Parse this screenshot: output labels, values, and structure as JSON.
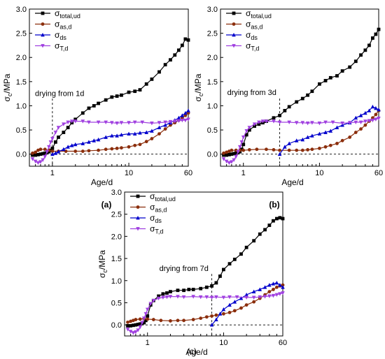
{
  "colors": {
    "sigma_total_ud": "#000000",
    "sigma_as_d": "#8b2e0c",
    "sigma_ds": "#0000cc",
    "sigma_T_d": "#a040e0"
  },
  "legend": [
    {
      "key": "sigma_total_ud",
      "base": "σ",
      "sub": "total,ud",
      "marker": "square"
    },
    {
      "key": "sigma_as_d",
      "base": "σ",
      "sub": "as,d",
      "marker": "circle"
    },
    {
      "key": "sigma_ds",
      "base": "σ",
      "sub": "ds",
      "marker": "triangle-up"
    },
    {
      "key": "sigma_T_d",
      "base": "σ",
      "sub": "T,d",
      "marker": "triangle-down"
    }
  ],
  "chart_data": [
    {
      "type": "line",
      "panel_label": "(a)",
      "annotation": "drying from 1d",
      "drying_start_day": 1,
      "xlabel": "Age/d",
      "ylabel": {
        "base": "σ",
        "sub": "c",
        "rest": "/MPa"
      },
      "xscale": "log",
      "xlim": [
        0.5,
        60
      ],
      "ylim": [
        -0.25,
        3.0
      ],
      "xticks": [
        1,
        10,
        60
      ],
      "yticks": [
        0.0,
        0.5,
        1.0,
        1.5,
        2.0,
        2.5,
        3.0
      ],
      "legend_position": "top-left",
      "series": [
        {
          "key": "sigma_total_ud",
          "name": "σtotal,ud",
          "x": [
            0.55,
            0.6,
            0.65,
            0.7,
            0.75,
            0.8,
            0.85,
            0.9,
            0.95,
            1.0,
            1.1,
            1.2,
            1.4,
            1.6,
            1.8,
            2.0,
            2.5,
            3,
            3.5,
            4,
            5,
            6,
            7,
            8,
            10,
            12,
            14,
            17,
            20,
            25,
            30,
            35,
            40,
            45,
            50,
            55,
            60
          ],
          "y": [
            -0.02,
            -0.02,
            -0.01,
            0.0,
            0.01,
            0.02,
            0.03,
            0.05,
            0.08,
            0.12,
            0.25,
            0.35,
            0.45,
            0.55,
            0.65,
            0.72,
            0.85,
            0.95,
            1.0,
            1.05,
            1.12,
            1.18,
            1.2,
            1.22,
            1.28,
            1.3,
            1.33,
            1.45,
            1.55,
            1.7,
            1.85,
            1.95,
            2.05,
            2.15,
            2.25,
            2.38,
            2.36
          ]
        },
        {
          "key": "sigma_as_d",
          "name": "σas,d",
          "x": [
            0.55,
            0.6,
            0.65,
            0.7,
            0.8,
            0.9,
            1.0,
            1.2,
            1.5,
            2,
            2.5,
            3,
            4,
            5,
            6,
            7,
            8,
            10,
            12,
            14,
            17,
            20,
            25,
            30,
            35,
            40,
            45,
            50,
            55,
            60
          ],
          "y": [
            0.02,
            0.04,
            0.08,
            0.1,
            0.1,
            0.08,
            0.06,
            0.06,
            0.06,
            0.06,
            0.06,
            0.07,
            0.08,
            0.1,
            0.11,
            0.12,
            0.13,
            0.15,
            0.18,
            0.2,
            0.26,
            0.32,
            0.42,
            0.52,
            0.6,
            0.65,
            0.7,
            0.75,
            0.8,
            0.85
          ]
        },
        {
          "key": "sigma_ds",
          "name": "σds",
          "x": [
            1.0,
            1.1,
            1.2,
            1.4,
            1.6,
            1.8,
            2.0,
            2.5,
            3,
            3.5,
            4,
            5,
            6,
            7,
            8,
            10,
            12,
            14,
            17,
            20,
            25,
            30,
            35,
            40,
            45,
            50,
            55,
            60
          ],
          "y": [
            0.0,
            0.02,
            0.05,
            0.1,
            0.15,
            0.18,
            0.2,
            0.22,
            0.25,
            0.28,
            0.3,
            0.35,
            0.38,
            0.38,
            0.4,
            0.42,
            0.42,
            0.44,
            0.45,
            0.48,
            0.55,
            0.6,
            0.65,
            0.7,
            0.75,
            0.8,
            0.85,
            0.9
          ]
        },
        {
          "key": "sigma_T_d",
          "name": "σT,d",
          "x": [
            0.55,
            0.6,
            0.65,
            0.7,
            0.75,
            0.8,
            0.85,
            0.9,
            0.95,
            1.0,
            1.1,
            1.2,
            1.4,
            1.6,
            1.8,
            2.0,
            2.5,
            3,
            4,
            5,
            6,
            7,
            8,
            10,
            12,
            15,
            20,
            25,
            30,
            35,
            40,
            45,
            50,
            55,
            60
          ],
          "y": [
            -0.1,
            -0.15,
            -0.18,
            -0.16,
            -0.12,
            -0.05,
            0.05,
            0.15,
            0.25,
            0.32,
            0.45,
            0.55,
            0.62,
            0.66,
            0.68,
            0.68,
            0.68,
            0.66,
            0.66,
            0.66,
            0.65,
            0.64,
            0.65,
            0.65,
            0.66,
            0.66,
            0.64,
            0.65,
            0.66,
            0.67,
            0.68,
            0.69,
            0.7,
            0.7,
            0.72
          ]
        }
      ]
    },
    {
      "type": "line",
      "panel_label": "(b)",
      "annotation": "drying from 3d",
      "drying_start_day": 3,
      "xlabel": "Age/d",
      "ylabel": {
        "base": "σ",
        "sub": "c",
        "rest": "/MPa"
      },
      "xscale": "log",
      "xlim": [
        0.5,
        60
      ],
      "ylim": [
        -0.25,
        3.0
      ],
      "xticks": [
        1,
        10,
        60
      ],
      "yticks": [
        0.0,
        0.5,
        1.0,
        1.5,
        2.0,
        2.5,
        3.0
      ],
      "legend_position": "top-left",
      "series": [
        {
          "key": "sigma_total_ud",
          "name": "σtotal,ud",
          "x": [
            0.55,
            0.6,
            0.65,
            0.7,
            0.75,
            0.8,
            0.85,
            0.9,
            0.95,
            1.0,
            1.1,
            1.2,
            1.4,
            1.6,
            1.8,
            2.0,
            2.5,
            3,
            3.5,
            4,
            5,
            6,
            7,
            8,
            10,
            12,
            14,
            17,
            20,
            25,
            30,
            35,
            40,
            45,
            50,
            55,
            60
          ],
          "y": [
            -0.02,
            -0.02,
            -0.01,
            0.0,
            0.01,
            0.02,
            0.03,
            0.05,
            0.1,
            0.2,
            0.4,
            0.5,
            0.58,
            0.62,
            0.65,
            0.68,
            0.75,
            0.8,
            0.9,
            0.98,
            1.08,
            1.15,
            1.22,
            1.3,
            1.45,
            1.52,
            1.58,
            1.62,
            1.72,
            1.8,
            1.92,
            2.05,
            2.15,
            2.25,
            2.4,
            2.48,
            2.58
          ]
        },
        {
          "key": "sigma_as_d",
          "name": "σas,d",
          "x": [
            0.55,
            0.6,
            0.65,
            0.7,
            0.8,
            0.9,
            1.0,
            1.2,
            1.5,
            2,
            2.5,
            3,
            4,
            5,
            6,
            7,
            8,
            10,
            12,
            14,
            17,
            20,
            25,
            30,
            35,
            40,
            45,
            50,
            55,
            60
          ],
          "y": [
            0.02,
            0.04,
            0.06,
            0.08,
            0.08,
            0.08,
            0.08,
            0.09,
            0.1,
            0.1,
            0.09,
            0.08,
            0.08,
            0.08,
            0.08,
            0.09,
            0.1,
            0.12,
            0.15,
            0.18,
            0.22,
            0.28,
            0.35,
            0.45,
            0.52,
            0.6,
            0.68,
            0.75,
            0.82,
            0.9
          ]
        },
        {
          "key": "sigma_ds",
          "name": "σds",
          "x": [
            3.0,
            3.5,
            4,
            5,
            6,
            7,
            8,
            10,
            12,
            14,
            17,
            20,
            25,
            30,
            35,
            40,
            45,
            50,
            55,
            60
          ],
          "y": [
            0.0,
            0.15,
            0.22,
            0.28,
            0.3,
            0.35,
            0.38,
            0.42,
            0.45,
            0.48,
            0.55,
            0.6,
            0.65,
            0.75,
            0.8,
            0.85,
            0.9,
            0.98,
            0.95,
            0.92
          ]
        },
        {
          "key": "sigma_T_d",
          "name": "σT,d",
          "x": [
            0.55,
            0.6,
            0.65,
            0.7,
            0.75,
            0.8,
            0.85,
            0.9,
            0.95,
            1.0,
            1.1,
            1.2,
            1.4,
            1.6,
            1.8,
            2.0,
            2.5,
            3,
            4,
            5,
            6,
            7,
            8,
            10,
            12,
            15,
            20,
            25,
            30,
            35,
            40,
            45,
            50,
            55,
            60
          ],
          "y": [
            -0.1,
            -0.15,
            -0.18,
            -0.16,
            -0.12,
            -0.05,
            0.05,
            0.15,
            0.25,
            0.35,
            0.48,
            0.55,
            0.62,
            0.66,
            0.68,
            0.68,
            0.68,
            0.66,
            0.66,
            0.65,
            0.65,
            0.64,
            0.65,
            0.64,
            0.66,
            0.66,
            0.64,
            0.65,
            0.66,
            0.66,
            0.68,
            0.69,
            0.7,
            0.72,
            0.74
          ]
        }
      ]
    },
    {
      "type": "line",
      "panel_label": "(c)",
      "annotation": "drying from 7d",
      "drying_start_day": 7,
      "xlabel": "Age/d",
      "ylabel": {
        "base": "σ",
        "sub": "c",
        "rest": "/MPa"
      },
      "xscale": "log",
      "xlim": [
        0.5,
        60
      ],
      "ylim": [
        -0.25,
        3.0
      ],
      "xticks": [
        1,
        10,
        60
      ],
      "yticks": [
        0.0,
        0.5,
        1.0,
        1.5,
        2.0,
        2.5,
        3.0
      ],
      "legend_position": "top-left",
      "series": [
        {
          "key": "sigma_total_ud",
          "name": "σtotal,ud",
          "x": [
            0.55,
            0.6,
            0.65,
            0.7,
            0.75,
            0.8,
            0.85,
            0.9,
            0.95,
            1.0,
            1.1,
            1.2,
            1.4,
            1.6,
            1.8,
            2.0,
            2.5,
            3,
            3.5,
            4,
            5,
            6,
            7,
            8,
            9,
            10,
            12,
            14,
            17,
            20,
            25,
            30,
            35,
            40,
            45,
            50,
            55,
            60
          ],
          "y": [
            -0.02,
            -0.02,
            -0.01,
            0.0,
            0.01,
            0.02,
            0.03,
            0.05,
            0.1,
            0.2,
            0.45,
            0.55,
            0.65,
            0.7,
            0.72,
            0.75,
            0.78,
            0.78,
            0.8,
            0.8,
            0.82,
            0.85,
            0.88,
            0.95,
            1.1,
            1.25,
            1.38,
            1.48,
            1.6,
            1.75,
            1.9,
            2.05,
            2.15,
            2.25,
            2.35,
            2.4,
            2.42,
            2.4
          ]
        },
        {
          "key": "sigma_as_d",
          "name": "σas,d",
          "x": [
            0.55,
            0.6,
            0.65,
            0.7,
            0.8,
            0.9,
            1.0,
            1.2,
            1.5,
            2,
            2.5,
            3,
            4,
            5,
            6,
            7,
            8,
            10,
            12,
            14,
            17,
            20,
            25,
            30,
            35,
            40,
            45,
            50,
            55,
            60
          ],
          "y": [
            0.06,
            0.08,
            0.1,
            0.12,
            0.13,
            0.14,
            0.13,
            0.12,
            0.1,
            0.09,
            0.1,
            0.1,
            0.12,
            0.15,
            0.18,
            0.2,
            0.22,
            0.25,
            0.28,
            0.32,
            0.38,
            0.45,
            0.52,
            0.6,
            0.68,
            0.75,
            0.8,
            0.85,
            0.88,
            0.9
          ]
        },
        {
          "key": "sigma_ds",
          "name": "σds",
          "x": [
            7,
            8,
            9,
            10,
            12,
            14,
            17,
            20,
            25,
            30,
            35,
            40,
            45,
            50,
            55,
            60
          ],
          "y": [
            0.0,
            0.12,
            0.25,
            0.35,
            0.45,
            0.52,
            0.6,
            0.68,
            0.75,
            0.8,
            0.85,
            0.9,
            0.93,
            0.95,
            0.9,
            0.85
          ]
        },
        {
          "key": "sigma_T_d",
          "name": "σT,d",
          "x": [
            0.55,
            0.6,
            0.65,
            0.7,
            0.75,
            0.8,
            0.85,
            0.9,
            0.95,
            1.0,
            1.1,
            1.2,
            1.4,
            1.6,
            1.8,
            2.0,
            2.5,
            3,
            4,
            5,
            6,
            7,
            8,
            10,
            12,
            15,
            20,
            25,
            30,
            35,
            40,
            45,
            50,
            55,
            60
          ],
          "y": [
            -0.1,
            -0.15,
            -0.18,
            -0.16,
            -0.12,
            -0.05,
            0.05,
            0.15,
            0.25,
            0.35,
            0.48,
            0.55,
            0.6,
            0.62,
            0.63,
            0.64,
            0.64,
            0.63,
            0.64,
            0.63,
            0.63,
            0.62,
            0.63,
            0.62,
            0.63,
            0.63,
            0.62,
            0.62,
            0.63,
            0.64,
            0.65,
            0.66,
            0.68,
            0.7,
            0.72
          ]
        }
      ]
    }
  ]
}
